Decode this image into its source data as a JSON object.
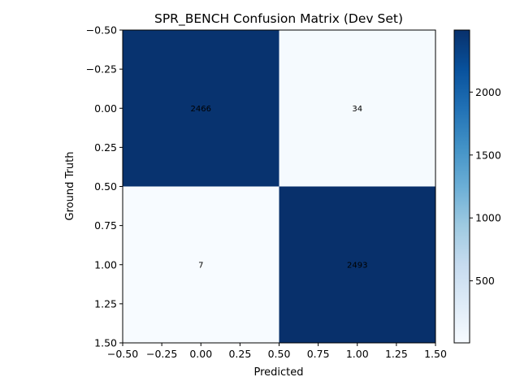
{
  "chart_data": {
    "type": "heatmap",
    "title": "SPR_BENCH Confusion Matrix (Dev Set)",
    "xlabel": "Predicted",
    "ylabel": "Ground Truth",
    "matrix": [
      [
        2466,
        34
      ],
      [
        7,
        2493
      ]
    ],
    "cell_labels": [
      [
        "2466",
        "34"
      ],
      [
        "7",
        "2493"
      ]
    ],
    "xlim": [
      -0.5,
      1.5
    ],
    "ylim": [
      1.5,
      -0.5
    ],
    "x_ticks": [
      "−0.50",
      "−0.25",
      "0.00",
      "0.25",
      "0.50",
      "0.75",
      "1.00",
      "1.25",
      "1.50"
    ],
    "y_ticks": [
      "−0.50",
      "−0.25",
      "0.00",
      "0.25",
      "0.50",
      "0.75",
      "1.00",
      "1.25",
      "1.50"
    ],
    "colorbar": {
      "colormap": "Blues",
      "range": [
        7,
        2493
      ],
      "ticks": [
        "500",
        "1000",
        "1500",
        "2000"
      ],
      "tick_values": [
        500,
        1000,
        1500,
        2000
      ]
    }
  }
}
